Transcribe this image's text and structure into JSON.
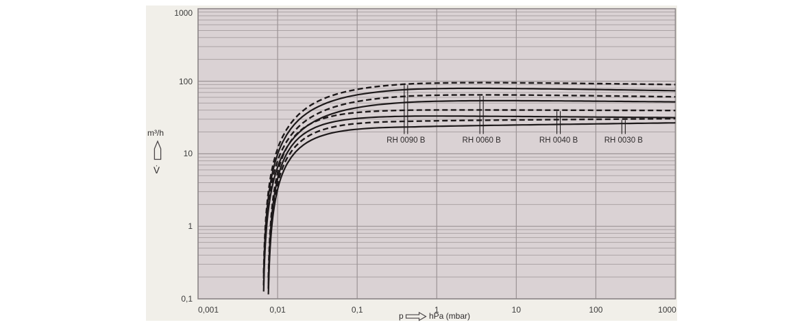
{
  "colors": {
    "page_background": "#ffffff",
    "panel_background": "#f1efe9",
    "plot_background": "#dad2d4",
    "grid_minor": "#aba3a5",
    "grid_major": "#9b9395",
    "plot_border": "#8d8789",
    "curve": "#1d191a",
    "text": "#3a3a3a"
  },
  "chart_data": {
    "type": "line",
    "title": "",
    "x_axis": {
      "quantity": "p",
      "unit_label": "hPa (mbar)",
      "scale": "log",
      "min": 0.001,
      "max": 1000,
      "tick_labels": [
        "0,001",
        "0,01",
        "0,1",
        "1",
        "10",
        "100",
        "1000"
      ],
      "tick_values": [
        0.001,
        0.01,
        0.1,
        1,
        10,
        100,
        1000
      ],
      "grid": "major-only"
    },
    "y_axis": {
      "unit_label": "m³/h",
      "quantity": "V̇",
      "scale": "log",
      "min": 0.1,
      "max": 1000,
      "tick_labels": [
        "1000",
        "100",
        "10",
        "1",
        "0,1"
      ],
      "tick_values": [
        1000,
        100,
        10,
        1,
        0.1
      ],
      "grid": "major-and-minor"
    },
    "series": [
      {
        "name": "RH 0090 B (dashed)",
        "line_style": "dashed",
        "model": {
          "t0": -2.19,
          "k": 1.6,
          "shape": 1.6,
          "vA": 100,
          "vB": 90
        },
        "sample_points_p_v": [
          [
            0.01,
            11.7
          ],
          [
            0.03,
            50.9
          ],
          [
            0.1,
            77
          ],
          [
            1,
            94
          ],
          [
            1000,
            90
          ]
        ]
      },
      {
        "name": "RH 0090 B (solid)",
        "line_style": "solid",
        "model": {
          "t0": -2.19,
          "k": 1.6,
          "shape": 1.6,
          "vA": 84,
          "vB": 74
        },
        "sample_points_p_v": [
          [
            0.01,
            9.8
          ],
          [
            0.03,
            42.8
          ],
          [
            0.1,
            62
          ],
          [
            1,
            79
          ],
          [
            1000,
            74
          ]
        ]
      },
      {
        "name": "RH 0060 B (dashed)",
        "line_style": "dashed",
        "model": {
          "t0": -2.19,
          "k": 1.6,
          "shape": 1.6,
          "vA": 68,
          "vB": 61
        },
        "sample_points_p_v": [
          [
            0.01,
            8.0
          ],
          [
            0.03,
            34.6
          ],
          [
            0.1,
            52.5
          ],
          [
            1,
            64
          ],
          [
            1000,
            61
          ]
        ]
      },
      {
        "name": "RH 0060 B (solid)",
        "line_style": "solid",
        "model": {
          "t0": -2.19,
          "k": 1.6,
          "shape": 1.6,
          "vA": 56,
          "vB": 52
        },
        "sample_points_p_v": [
          [
            0.01,
            6.6
          ],
          [
            0.03,
            28.5
          ],
          [
            0.1,
            43.2
          ],
          [
            1,
            52.9
          ],
          [
            1000,
            52
          ]
        ]
      },
      {
        "name": "RH 0040 B (dashed)",
        "line_style": "dashed",
        "model": {
          "t0": -2.13,
          "k": 2.6,
          "shape": 1.6,
          "vA": 40.5,
          "vB": 39.5
        },
        "sample_points_p_v": [
          [
            0.01,
            5.5
          ],
          [
            0.03,
            28.0
          ],
          [
            0.1,
            37.1
          ],
          [
            1,
            40.1
          ],
          [
            1000,
            39.5
          ]
        ]
      },
      {
        "name": "RH 0040 B (solid)",
        "line_style": "solid",
        "model": {
          "t0": -2.13,
          "k": 2.6,
          "shape": 1.6,
          "vA": 33.5,
          "vB": 31.5
        },
        "sample_points_p_v": [
          [
            0.01,
            4.5
          ],
          [
            0.03,
            23.1
          ],
          [
            0.1,
            30.7
          ],
          [
            1,
            33.1
          ],
          [
            1000,
            31.5
          ]
        ]
      },
      {
        "name": "RH 0030 B (dashed)",
        "line_style": "dashed",
        "model": {
          "t0": -2.13,
          "k": 2.6,
          "shape": 1.6,
          "vA": 28.5,
          "vB": 30.5
        },
        "sample_points_p_v": [
          [
            0.01,
            3.8
          ],
          [
            0.03,
            19.7
          ],
          [
            0.1,
            26.1
          ],
          [
            1,
            28.5
          ],
          [
            1000,
            30.5
          ]
        ]
      },
      {
        "name": "RH 0030 B (solid)",
        "line_style": "solid",
        "model": {
          "t0": -2.13,
          "k": 2.6,
          "shape": 1.6,
          "vA": 23.8,
          "vB": 26.7
        },
        "sample_points_p_v": [
          [
            0.01,
            3.2
          ],
          [
            0.03,
            16.4
          ],
          [
            0.1,
            21.8
          ],
          [
            1,
            23.9
          ],
          [
            1000,
            26.7
          ]
        ]
      }
    ],
    "curve_labels": [
      {
        "text": "RH 0090 B",
        "p": 0.41,
        "series_index": 0
      },
      {
        "text": "RH 0060 B",
        "p": 3.66,
        "series_index": 2
      },
      {
        "text": "RH 0040 B",
        "p": 34,
        "series_index": 4
      },
      {
        "text": "RH 0030 B",
        "p": 223,
        "series_index": 6
      }
    ],
    "legend_position": "none",
    "x_axis_prefix_label": "p",
    "x_axis_suffix_label": "hPa (mbar)",
    "y_axis_unit": "m³/h",
    "y_axis_symbol": "V̇"
  }
}
